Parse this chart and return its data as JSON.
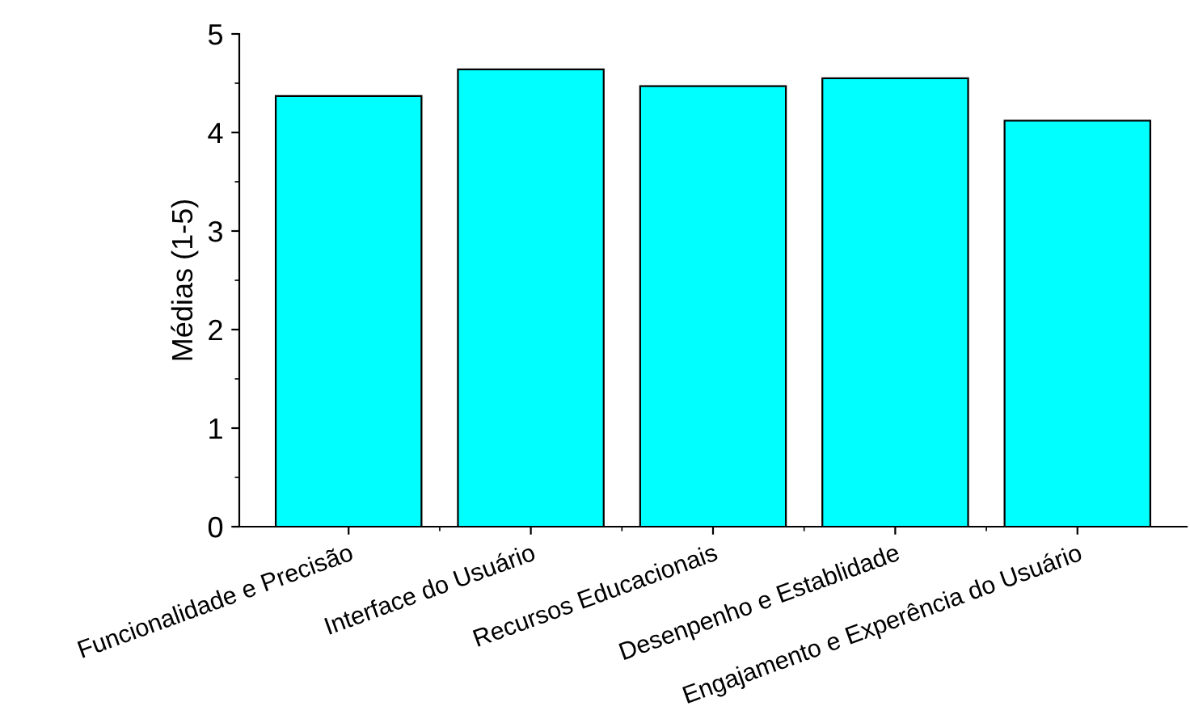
{
  "chart_data": {
    "type": "bar",
    "ylabel": "Médias (1-5)",
    "categories": [
      "Funcionalidade e Precisão",
      "Interface do Usuário",
      "Recursos Educacionais",
      "Desenpenho e Establidade",
      "Engajamento e Experência do Usuário"
    ],
    "values": [
      4.37,
      4.64,
      4.47,
      4.55,
      4.12
    ],
    "color": "#00ffff",
    "ylim": [
      0,
      5
    ],
    "yticks": [
      0,
      1,
      2,
      3,
      4,
      5
    ],
    "grid": false,
    "legend": false
  }
}
